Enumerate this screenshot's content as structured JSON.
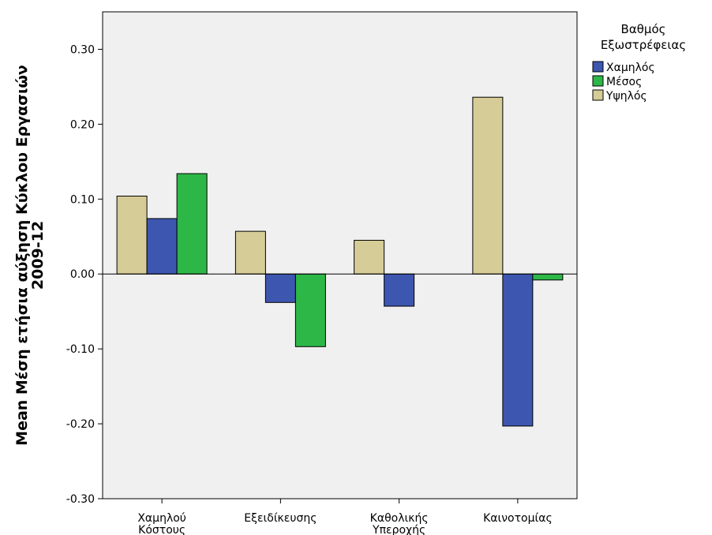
{
  "chart_data": {
    "type": "bar",
    "categories": [
      [
        "Χαμηλού",
        "Κόστους"
      ],
      [
        "Εξειδίκευσης"
      ],
      [
        "Καθολικής",
        "Υπεροχής"
      ],
      [
        "Καινοτομίας"
      ]
    ],
    "series": [
      {
        "name": "Υψηλός",
        "color": "#d6cc97",
        "values": [
          0.104,
          0.057,
          0.045,
          0.236
        ]
      },
      {
        "name": "Χαμηλός",
        "color": "#3d56b0",
        "values": [
          0.074,
          -0.038,
          -0.043,
          -0.203
        ]
      },
      {
        "name": "Μέσος",
        "color": "#2db747",
        "values": [
          0.134,
          -0.097,
          null,
          -0.008
        ]
      }
    ],
    "ylabel": [
      "Mean Μέση ετήσια αύξηση Κύκλου Εργασιών",
      "2009-12"
    ],
    "ylim": [
      -0.3,
      0.35
    ],
    "yticks": [
      "0.30",
      "0.20",
      "0.10",
      "0.00",
      "-0.10",
      "-0.20",
      "-0.30"
    ],
    "ytick_values": [
      0.3,
      0.2,
      0.1,
      0.0,
      -0.1,
      -0.2,
      -0.3
    ],
    "legend": {
      "title": [
        "Βαθμός",
        "Εξωστρέφειας"
      ],
      "items": [
        {
          "label": "Χαμηλός",
          "color": "#3d56b0"
        },
        {
          "label": "Μέσος",
          "color": "#2db747"
        },
        {
          "label": "Υψηλός",
          "color": "#d6cc97"
        }
      ],
      "position": "right"
    },
    "plot_background": "#f0f0f0",
    "grid": false
  }
}
